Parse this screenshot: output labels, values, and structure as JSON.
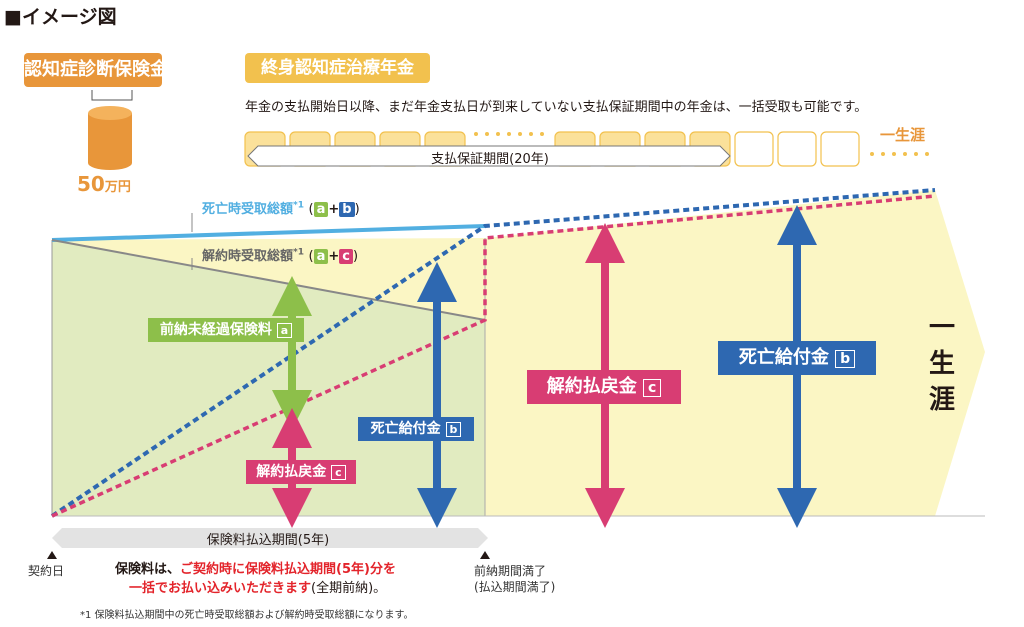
{
  "title": "■イメージ図",
  "diagnosis": {
    "label": "認知症診断保険金",
    "amount_num": "50",
    "amount_unit": "万円"
  },
  "annuity": {
    "label": "終身認知症治療年金",
    "description": "年金の支払開始日以降、まだ年金支払日が到来していない支払保証期間中の年金は、一括受取も可能です。",
    "period_label": "支払保証期間(20年)",
    "lifetime": "一生涯"
  },
  "death_total": {
    "label": "死亡時受取総額",
    "sup": "*1",
    "formula_open": "(",
    "a": "a",
    "plus": "+",
    "b": "b",
    "formula_close": ")"
  },
  "surrender_total": {
    "label": "解約時受取総額",
    "sup": "*1",
    "formula_open": "(",
    "a": "a",
    "plus": "+",
    "c": "c",
    "formula_close": ")"
  },
  "prepaid": {
    "label": "前納未経過保険料",
    "tag": "a"
  },
  "surrender_small": {
    "label": "解約払戻金",
    "tag": "c"
  },
  "death_small": {
    "label": "死亡給付金",
    "tag": "b"
  },
  "surrender_big": {
    "label": "解約払戻金",
    "tag": "c"
  },
  "death_big": {
    "label": "死亡給付金",
    "tag": "b"
  },
  "lifetime_side": [
    "一",
    "生",
    "涯"
  ],
  "payment_period": "保険料払込期間(5年)",
  "contract_day": "契約日",
  "prepaid_end": "前納期間満了",
  "prepaid_end_sub": "(払込期間満了)",
  "note_main": {
    "prefix": "保険料は、",
    "red1": "ご契約時に保険料払込期間(5年)分を",
    "red2": "一括でお払い込みいただきます",
    "suffix": "(全期前納)。"
  },
  "footnote": "*1 保険料払込期間中の死亡時受取総額および解約時受取総額になります。",
  "colors": {
    "orange": "#e8963a",
    "gold": "#f2c14e",
    "green": "#8dbf4a",
    "blue": "#2e68b1",
    "pink": "#d83d73",
    "lightblue": "#52afe1",
    "yellow_bg": "#fbf6c4",
    "green_bg": "#e1ebc0"
  }
}
